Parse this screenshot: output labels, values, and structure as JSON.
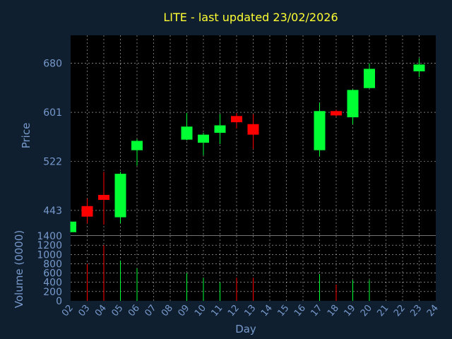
{
  "chart_data": {
    "type": "candlestick",
    "title": "LITE - last updated 23/02/2026",
    "xlabel": "Day",
    "price_panel": {
      "ylabel": "Price",
      "yticks": [
        443,
        522,
        601,
        680
      ],
      "ylim": [
        402,
        725
      ],
      "grid": true
    },
    "volume_panel": {
      "ylabel": "Volume (0000)",
      "yticks": [
        0,
        200,
        400,
        600,
        800,
        1000,
        1200,
        1400
      ],
      "ylim": [
        0,
        1400
      ],
      "grid": true
    },
    "x_ticks": [
      "02",
      "03",
      "04",
      "05",
      "06",
      "07",
      "08",
      "09",
      "10",
      "11",
      "12",
      "13",
      "14",
      "15",
      "16",
      "17",
      "18",
      "19",
      "20",
      "21",
      "22",
      "23",
      "24"
    ],
    "colors": {
      "background": "#0f1f2f",
      "plot_bg": "#000000",
      "up": "#00ff33",
      "down": "#ff0000",
      "title": "#ffff33",
      "axis_text": "#7799cc",
      "grid": "#ffffff"
    },
    "candles": [
      {
        "day": "02",
        "open": 408,
        "high": 425,
        "low": 408,
        "close": 425,
        "volume": 0
      },
      {
        "day": "03",
        "open": 450,
        "high": 462,
        "low": 422,
        "close": 433,
        "volume": 800
      },
      {
        "day": "04",
        "open": 468,
        "high": 505,
        "low": 420,
        "close": 460,
        "volume": 1200
      },
      {
        "day": "05",
        "open": 432,
        "high": 505,
        "low": 422,
        "close": 502,
        "volume": 870
      },
      {
        "day": "06",
        "open": 540,
        "high": 558,
        "low": 515,
        "close": 555,
        "volume": 700
      },
      {
        "day": "09",
        "open": 557,
        "high": 600,
        "low": 556,
        "close": 578,
        "volume": 600
      },
      {
        "day": "10",
        "open": 552,
        "high": 568,
        "low": 532,
        "close": 565,
        "volume": 500
      },
      {
        "day": "11",
        "open": 568,
        "high": 598,
        "low": 550,
        "close": 580,
        "volume": 400
      },
      {
        "day": "12",
        "open": 595,
        "high": 600,
        "low": 575,
        "close": 585,
        "volume": 500
      },
      {
        "day": "13",
        "open": 582,
        "high": 598,
        "low": 542,
        "close": 565,
        "volume": 500
      },
      {
        "day": "17",
        "open": 540,
        "high": 617,
        "low": 530,
        "close": 603,
        "volume": 580
      },
      {
        "day": "18",
        "open": 603,
        "high": 605,
        "low": 594,
        "close": 596,
        "volume": 350
      },
      {
        "day": "19",
        "open": 593,
        "high": 638,
        "low": 582,
        "close": 637,
        "volume": 450
      },
      {
        "day": "20",
        "open": 640,
        "high": 680,
        "low": 640,
        "close": 671,
        "volume": 450
      },
      {
        "day": "23",
        "open": 667,
        "high": 688,
        "low": 658,
        "close": 678,
        "volume": 0
      }
    ]
  }
}
